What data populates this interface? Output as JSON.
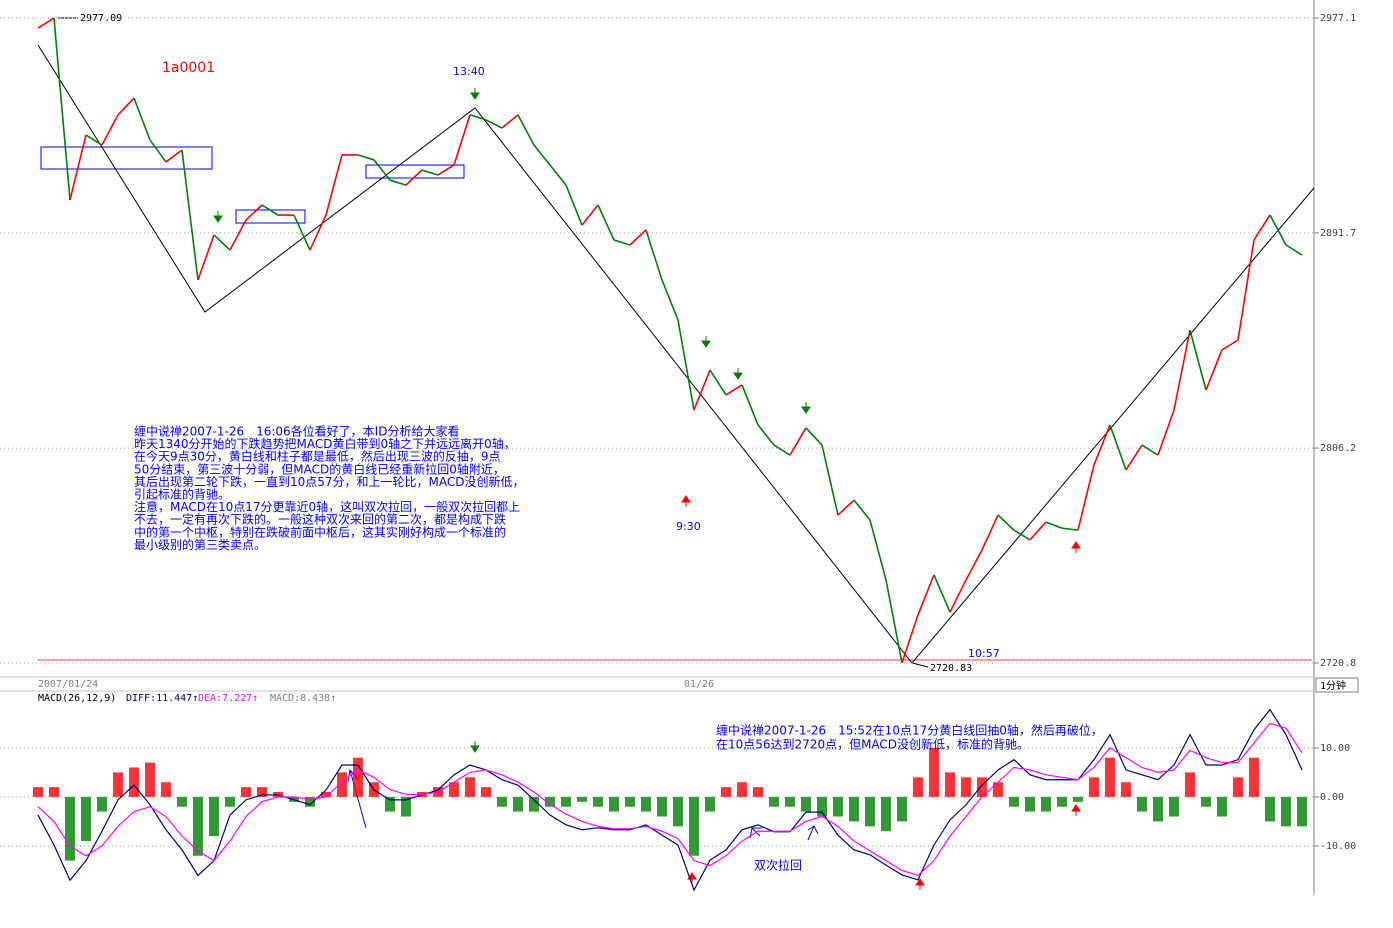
{
  "chart_data": [
    {
      "type": "line",
      "symbol": "1a0001",
      "x_labels": [
        "2007/01/24",
        "01/26"
      ],
      "period": "1分钟",
      "time_labels": [
        "13:40",
        "9:30",
        "10:57"
      ],
      "ylim": [
        2720.8,
        2977.1
      ],
      "yticks": [
        2977.1,
        2891.7,
        2806.2,
        2720.8
      ],
      "grid": true,
      "up_color": "#ff0000",
      "down_color": "#008000",
      "series": [
        {
          "values": [
            2973.1,
            2977.09,
            2904.8,
            2930.6,
            2926.6,
            2938.6,
            2945.3,
            2928.6,
            2919.9,
            2924.6,
            2873.0,
            2890.9,
            2884.9,
            2896.8,
            2902.8,
            2898.8,
            2898.8,
            2884.9,
            2898.8,
            2922.7,
            2922.7,
            2920.7,
            2912.7,
            2910.7,
            2916.7,
            2914.7,
            2918.7,
            2938.6,
            2936.6,
            2933.4,
            2938.6,
            2926.6,
            2918.7,
            2910.7,
            2894.8,
            2902.8,
            2888.9,
            2886.9,
            2892.9,
            2873.0,
            2857.1,
            2821.3,
            2837.2,
            2827.3,
            2831.3,
            2815.4,
            2807.4,
            2803.4,
            2814.2,
            2807.4,
            2779.6,
            2785.5,
            2777.6,
            2753.8,
            2720.83,
            2739.9,
            2755.8,
            2741.0,
            2753.8,
            2765.7,
            2779.6,
            2773.6,
            2769.7,
            2776.8,
            2774.4,
            2773.6,
            2799.5,
            2815.4,
            2797.5,
            2807.4,
            2803.4,
            2821.3,
            2853.1,
            2829.3,
            2845.2,
            2849.1,
            2888.9,
            2898.8,
            2886.9,
            2882.9
          ]
        }
      ],
      "annotation": [
        "缠中说禅2007-1-26　16:06各位看好了，本ID分析给大家看",
        "昨天1340分开始的下跌趋势把MACD黄白带到0轴之下并远远离开0轴，",
        "在今天9点30分，黄白线和柱子都是最低，然后出现三波的反抽，9点",
        "50分结束，第三波十分弱，但MACD的黄白线已经重新拉回0轴附近，",
        "其后出现第二轮下跌，一直到10点57分，和上一轮比，MACD没创新低，",
        "引起标准的背驰。",
        "注意，MACD在10点17分更靠近0轴，这叫双次拉回，一般双次拉回都上",
        "不去，一定有再次下跌的。一般这种双次来回的第二次，都是构成下跌",
        "中的第一个中枢，特别在跌破前面中枢后，这其实刚好构成一个标准的",
        "最小级别的第三类卖点。"
      ]
    },
    {
      "type": "macd",
      "title": "MACD(26,12,9)",
      "ylim": [
        -20,
        21.8
      ],
      "yticks": [
        {
          "value": 10,
          "label": "10.00"
        },
        {
          "value": 0,
          "label": "0.00"
        },
        {
          "value": -10,
          "label": "-10.00"
        }
      ],
      "grid": true,
      "up_color": "#ff0000",
      "down_color": "#008000",
      "series": [
        {
          "name": "DIFF:11.447↑",
          "color": "#000080",
          "values": [
            -3.7,
            -9.8,
            -17,
            -13,
            -7,
            -0.6,
            2.4,
            -1.6,
            -6.7,
            -10.8,
            -16,
            -13,
            -3.7,
            -0.6,
            0.4,
            0.4,
            -0.6,
            -1.6,
            1.4,
            6.5,
            6.5,
            1.4,
            -0.6,
            -0.6,
            0.4,
            1.4,
            4.5,
            6.5,
            5.5,
            3.5,
            2.4,
            -0.6,
            -3.7,
            -5.7,
            -6.7,
            -6.3,
            -6.7,
            -6.7,
            -5.7,
            -7.8,
            -9.8,
            -19,
            -12.9,
            -10.8,
            -6.7,
            -5.7,
            -7.1,
            -7.1,
            -3.1,
            -3.1,
            -7.8,
            -10.8,
            -11.8,
            -13.9,
            -15.9,
            -16.9,
            -9.8,
            -4.7,
            -1.6,
            2.4,
            5.5,
            7.6,
            4.5,
            3.5,
            3.5,
            3.5,
            7.6,
            12.7,
            5.5,
            4.5,
            3.5,
            6.5,
            12.7,
            6.5,
            6.5,
            7.6,
            13.7,
            17.8,
            12.7,
            5.5
          ]
        },
        {
          "name": "DEA:7.227↑",
          "color": "#ff00ff",
          "values": [
            -2,
            -5,
            -10,
            -12,
            -10,
            -6,
            -3,
            -2,
            -4,
            -8,
            -11,
            -13,
            -9,
            -4,
            -1,
            0,
            0,
            -0.5,
            0,
            3,
            5.5,
            4,
            1.5,
            0.5,
            0.5,
            1,
            3,
            5,
            5.5,
            4.5,
            3,
            1,
            -1.5,
            -3.5,
            -5,
            -6,
            -6.5,
            -6.5,
            -6,
            -7,
            -8.5,
            -13,
            -14,
            -12,
            -9,
            -7,
            -7,
            -7,
            -5,
            -4,
            -6,
            -9,
            -11,
            -13,
            -15,
            -16,
            -13,
            -8,
            -4,
            0,
            3,
            6,
            5.5,
            4.5,
            4,
            3.5,
            6,
            10,
            8,
            6,
            5,
            5.5,
            9.5,
            8,
            7,
            7,
            11,
            15,
            14,
            9
          ]
        },
        {
          "name": "MACD:8.438↑",
          "color": "#808080",
          "values": [
            2,
            2,
            -13,
            -9,
            -3,
            5,
            6,
            7,
            3,
            -2,
            -12,
            -8,
            -2,
            2,
            2,
            1,
            -1,
            -2,
            1,
            5,
            8,
            3,
            -3,
            -4,
            1,
            2,
            3,
            4,
            2,
            -2,
            -3,
            -3,
            -2,
            -2,
            -1,
            -2,
            -3,
            -2,
            -3,
            -4,
            -6,
            -12,
            -3,
            2,
            3,
            2,
            -2,
            -2,
            -3,
            -4,
            -4,
            -5,
            -6,
            -7,
            -5,
            4,
            10,
            5,
            4,
            4,
            3,
            -2,
            -3,
            -3,
            -2,
            -1,
            4,
            8,
            3,
            -3,
            -5,
            -4,
            5,
            -2,
            -4,
            4,
            8,
            -5,
            -6,
            -6
          ]
        }
      ],
      "annotation": [
        "缠中说禅2007-1-26　15:52在10点17分黄白线回抽0轴，然后再破位，",
        "在10点56达到2720点，但MACD没创新低，标准的背驰。"
      ],
      "note": "双次拉回"
    }
  ]
}
